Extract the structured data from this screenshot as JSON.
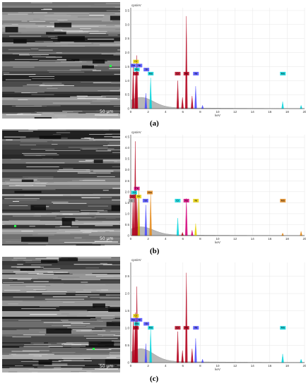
{
  "captions": [
    "(a)",
    "(b)",
    "(c)"
  ],
  "caption_letters": [
    "a",
    "b",
    "c"
  ],
  "sem_scale_label": "50 µm",
  "colors": {
    "red": "#b3001b",
    "cyan": "#00d4dc",
    "blue": "#4a4aff",
    "orange": "#e58a1a",
    "yellow": "#e6d000",
    "grey": "#9a9a9a",
    "magenta": "#d4007a",
    "gold": "#c8a000"
  },
  "chart_data": [
    {
      "type": "line",
      "ylabel": "cps/eV",
      "xlabel": "keV",
      "xlim": [
        0,
        20
      ],
      "ylim": [
        0,
        3.6
      ],
      "xticks": [
        0,
        2,
        4,
        6,
        8,
        10,
        12,
        14,
        16,
        18,
        20
      ],
      "yticks": [
        0,
        0.5,
        1.0,
        1.5,
        2.0,
        2.5,
        3.0,
        3.5
      ],
      "peaks": [
        {
          "x": 0.28,
          "y": 1.55,
          "color": "red"
        },
        {
          "x": 0.52,
          "y": 0.55,
          "color": "grey"
        },
        {
          "x": 0.57,
          "y": 1.25,
          "color": "red"
        },
        {
          "x": 0.7,
          "y": 1.9,
          "color": "red"
        },
        {
          "x": 1.74,
          "y": 0.55,
          "color": "blue"
        },
        {
          "x": 2.29,
          "y": 1.1,
          "color": "cyan"
        },
        {
          "x": 5.41,
          "y": 1.0,
          "color": "red"
        },
        {
          "x": 5.95,
          "y": 0.4,
          "color": "red"
        },
        {
          "x": 6.4,
          "y": 3.3,
          "color": "red"
        },
        {
          "x": 7.06,
          "y": 0.45,
          "color": "red"
        },
        {
          "x": 7.47,
          "y": 0.8,
          "color": "blue"
        },
        {
          "x": 8.26,
          "y": 0.12,
          "color": "blue"
        },
        {
          "x": 17.48,
          "y": 0.25,
          "color": "cyan"
        },
        {
          "x": 19.6,
          "y": 0.12,
          "color": "cyan"
        }
      ],
      "labels": [
        {
          "text": "Cr",
          "x": 0.6,
          "row": 0,
          "color": "yellow"
        },
        {
          "text": "Fe",
          "x": 0.3,
          "row": 1,
          "color": "blue"
        },
        {
          "text": "Ni",
          "x": 1.0,
          "row": 1,
          "color": "blue"
        },
        {
          "text": "Mo",
          "x": 0.7,
          "row": 2,
          "color": "cyan"
        },
        {
          "text": "Si",
          "x": 1.8,
          "row": 2,
          "color": "blue"
        },
        {
          "text": "Cr",
          "x": 0.6,
          "row": 3,
          "color": "red"
        },
        {
          "text": "Mo",
          "x": 2.3,
          "row": 3,
          "color": "cyan"
        },
        {
          "text": "Cr",
          "x": 5.4,
          "row": 3,
          "color": "red"
        },
        {
          "text": "Fe",
          "x": 6.4,
          "row": 3,
          "color": "red"
        },
        {
          "text": "Ni",
          "x": 7.5,
          "row": 3,
          "color": "blue"
        },
        {
          "text": "Mo",
          "x": 17.5,
          "row": 3,
          "color": "cyan"
        }
      ]
    },
    {
      "type": "line",
      "ylabel": "cps/eV",
      "xlabel": "keV",
      "xlim": [
        0,
        20
      ],
      "ylim": [
        0,
        4.6
      ],
      "xticks": [
        0,
        2,
        4,
        6,
        8,
        10,
        12,
        14,
        16,
        18,
        20
      ],
      "yticks": [
        0,
        0.5,
        1.0,
        1.5,
        2.0,
        2.5,
        3.0,
        3.5,
        4.0,
        4.5
      ],
      "peaks": [
        {
          "x": 0.28,
          "y": 1.9,
          "color": "red"
        },
        {
          "x": 0.52,
          "y": 4.3,
          "color": "red"
        },
        {
          "x": 0.7,
          "y": 1.7,
          "color": "red"
        },
        {
          "x": 0.93,
          "y": 2.1,
          "color": "gold"
        },
        {
          "x": 1.74,
          "y": 1.4,
          "color": "blue"
        },
        {
          "x": 2.29,
          "y": 1.9,
          "color": "orange"
        },
        {
          "x": 5.41,
          "y": 0.8,
          "color": "cyan"
        },
        {
          "x": 5.95,
          "y": 0.15,
          "color": "red"
        },
        {
          "x": 6.4,
          "y": 1.7,
          "color": "magenta"
        },
        {
          "x": 7.06,
          "y": 0.25,
          "color": "magenta"
        },
        {
          "x": 7.47,
          "y": 0.55,
          "color": "yellow"
        },
        {
          "x": 17.48,
          "y": 0.12,
          "color": "orange"
        },
        {
          "x": 19.6,
          "y": 0.2,
          "color": "orange"
        }
      ],
      "labels": [
        {
          "text": "Fe",
          "x": 0.7,
          "row": 0,
          "color": "magenta"
        },
        {
          "text": "Cr",
          "x": 0.4,
          "row": 1,
          "color": "cyan"
        },
        {
          "text": "Mo",
          "x": 2.2,
          "row": 1,
          "color": "orange"
        },
        {
          "text": "O",
          "x": 0.2,
          "row": 2,
          "color": "red"
        },
        {
          "text": "Ni",
          "x": 0.9,
          "row": 2,
          "color": "yellow"
        },
        {
          "text": "C",
          "x": 0.1,
          "row": 3,
          "color": "grey"
        },
        {
          "text": "Si",
          "x": 1.7,
          "row": 3,
          "color": "blue"
        },
        {
          "text": "Cr",
          "x": 5.4,
          "row": 3,
          "color": "cyan"
        },
        {
          "text": "Fe",
          "x": 6.4,
          "row": 3,
          "color": "magenta"
        },
        {
          "text": "Ni",
          "x": 7.5,
          "row": 3,
          "color": "yellow"
        },
        {
          "text": "Mo",
          "x": 17.5,
          "row": 3,
          "color": "orange"
        }
      ]
    },
    {
      "type": "line",
      "ylabel": "cps/eV",
      "xlabel": "keV",
      "xlim": [
        0,
        20
      ],
      "ylim": [
        0,
        2.9
      ],
      "xticks": [
        0,
        2,
        4,
        6,
        8,
        10,
        12,
        14,
        16,
        18,
        20
      ],
      "yticks": [
        0,
        0.5,
        1.0,
        1.5,
        2.0,
        2.5
      ],
      "peaks": [
        {
          "x": 0.28,
          "y": 1.25,
          "color": "red"
        },
        {
          "x": 0.52,
          "y": 1.45,
          "color": "red"
        },
        {
          "x": 0.57,
          "y": 1.0,
          "color": "red"
        },
        {
          "x": 0.7,
          "y": 2.2,
          "color": "red"
        },
        {
          "x": 1.74,
          "y": 0.55,
          "color": "blue"
        },
        {
          "x": 2.29,
          "y": 0.95,
          "color": "cyan"
        },
        {
          "x": 5.41,
          "y": 0.9,
          "color": "red"
        },
        {
          "x": 5.95,
          "y": 0.35,
          "color": "red"
        },
        {
          "x": 6.4,
          "y": 2.6,
          "color": "red"
        },
        {
          "x": 7.06,
          "y": 0.4,
          "color": "red"
        },
        {
          "x": 7.47,
          "y": 0.7,
          "color": "blue"
        },
        {
          "x": 8.26,
          "y": 0.1,
          "color": "blue"
        },
        {
          "x": 17.48,
          "y": 0.25,
          "color": "cyan"
        },
        {
          "x": 19.6,
          "y": 0.1,
          "color": "cyan"
        }
      ],
      "labels": [
        {
          "text": "Cr",
          "x": 0.6,
          "row": 0,
          "color": "yellow"
        },
        {
          "text": "Fe",
          "x": 0.3,
          "row": 1,
          "color": "blue"
        },
        {
          "text": "Ni",
          "x": 1.0,
          "row": 1,
          "color": "blue"
        },
        {
          "text": "Mo",
          "x": 0.7,
          "row": 2,
          "color": "cyan"
        },
        {
          "text": "Si",
          "x": 1.8,
          "row": 2,
          "color": "blue"
        },
        {
          "text": "Cr",
          "x": 0.6,
          "row": 3,
          "color": "red"
        },
        {
          "text": "Mo",
          "x": 2.3,
          "row": 3,
          "color": "cyan"
        },
        {
          "text": "Cr",
          "x": 5.4,
          "row": 3,
          "color": "red"
        },
        {
          "text": "Fe",
          "x": 6.4,
          "row": 3,
          "color": "red"
        },
        {
          "text": "Ni",
          "x": 7.5,
          "row": 3,
          "color": "blue"
        },
        {
          "text": "Mo",
          "x": 17.5,
          "row": 3,
          "color": "cyan"
        }
      ]
    }
  ]
}
